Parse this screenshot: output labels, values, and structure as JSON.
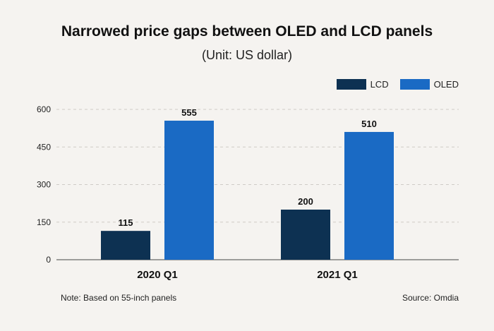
{
  "chart_data": {
    "type": "bar",
    "title": "Narrowed price gaps between OLED and LCD panels",
    "subtitle": "(Unit: US dollar)",
    "categories": [
      "2020 Q1",
      "2021 Q1"
    ],
    "series": [
      {
        "name": "LCD",
        "values": [
          115,
          200
        ],
        "color": "#0d3152"
      },
      {
        "name": "OLED",
        "values": [
          555,
          510
        ],
        "color": "#1a6ac4"
      }
    ],
    "data_labels": [
      [
        "115",
        "200"
      ],
      [
        "555",
        "510"
      ]
    ],
    "yticks": [
      0,
      150,
      300,
      450,
      600
    ],
    "ytick_labels": [
      "0",
      "150",
      "300",
      "450",
      "600"
    ],
    "ylim": [
      0,
      600
    ],
    "xlabel": "",
    "ylabel": "",
    "grid": "dashed horizontal",
    "legend_position": "top-right"
  },
  "footer": {
    "note": "Note: Based on 55-inch panels",
    "source": "Source: Omdia"
  }
}
